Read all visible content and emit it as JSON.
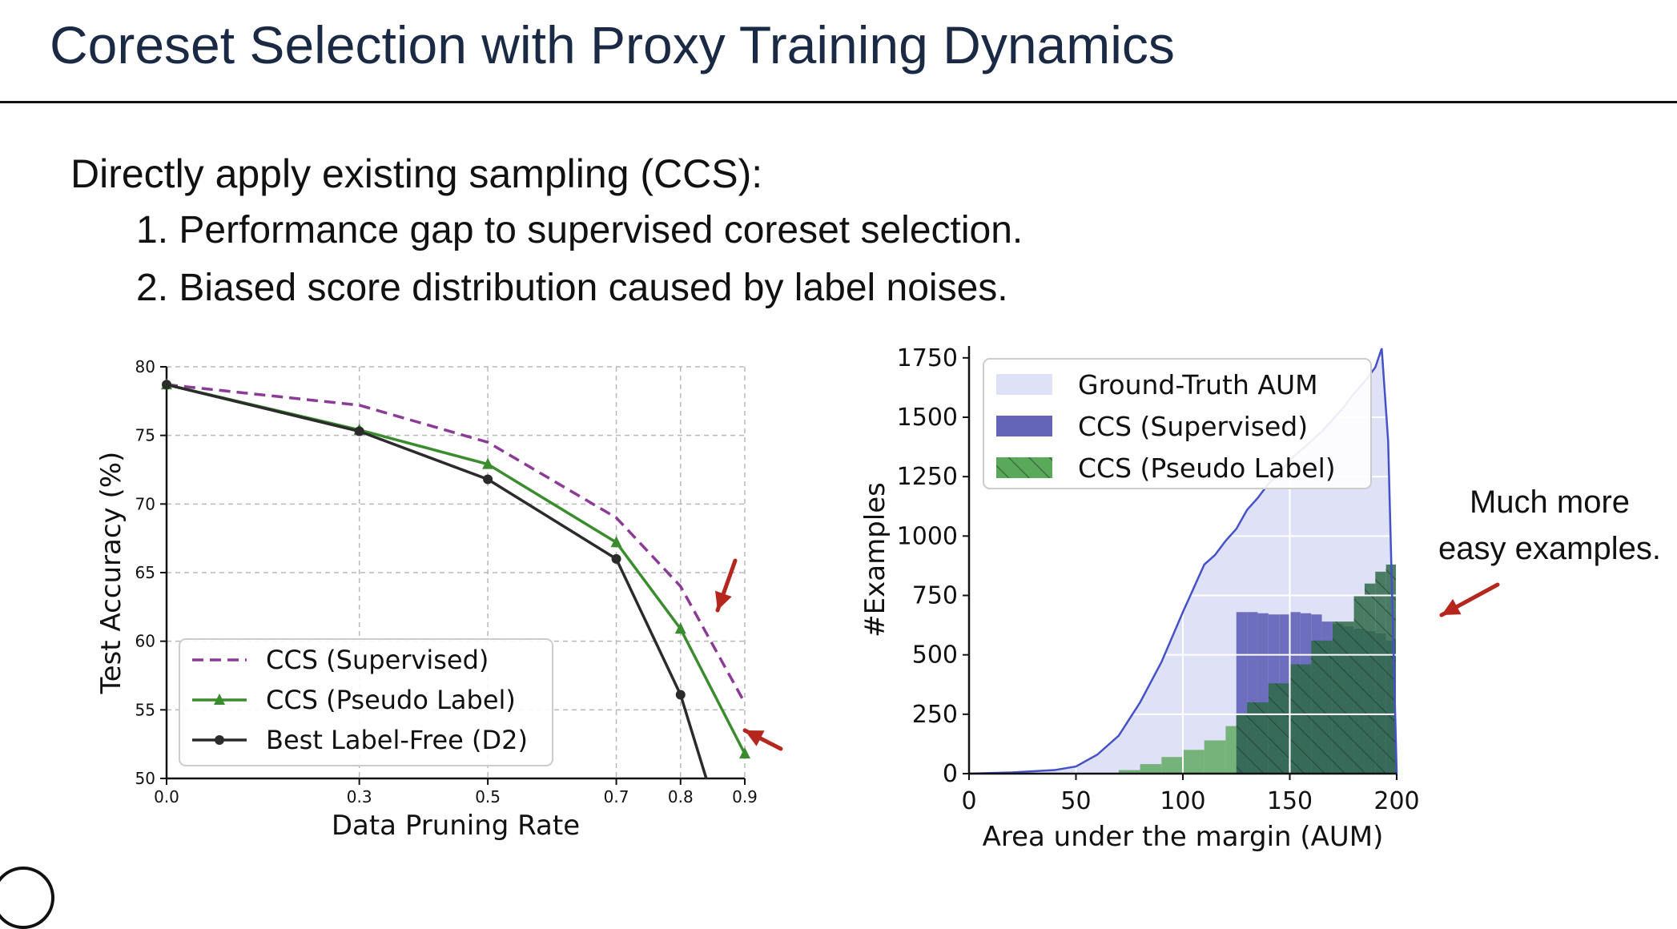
{
  "slide": {
    "title": "Coreset Selection with Proxy Training Dynamics",
    "heading": "Directly apply existing sampling (CCS):",
    "items": [
      "1. Performance gap to supervised coreset selection.",
      "2. Biased score distribution caused by label noises."
    ],
    "note_lines": [
      "Much more",
      "easy examples."
    ]
  },
  "colors": {
    "supervised_line": "#8b3a96",
    "pseudo_line": "#3a8c2e",
    "d2_line": "#2b2b2b",
    "gt_fill": "#dfe1f7",
    "gt_line": "#4451c8",
    "supervised_bar": "#6464b8",
    "pseudo_bar": "#5aa85a",
    "overlap_bar": "#2f6a48",
    "arrow": "#b5261e"
  },
  "chart_data": [
    {
      "type": "line",
      "title": "",
      "xlabel": "Data Pruning Rate",
      "ylabel": "Test Accuracy (%)",
      "xlim": [
        0.0,
        0.9
      ],
      "ylim": [
        50,
        80
      ],
      "x_ticks": [
        "0.0",
        "0.3",
        "0.5",
        "0.7",
        "0.8",
        "0.9"
      ],
      "y_ticks": [
        "50",
        "55",
        "60",
        "65",
        "70",
        "75",
        "80"
      ],
      "grid": true,
      "legend_position": "lower-left",
      "series": [
        {
          "name": "CCS (Supervised)",
          "style": "dashed",
          "marker": "none",
          "x": [
            0.0,
            0.3,
            0.5,
            0.7,
            0.8,
            0.9
          ],
          "y": [
            78.7,
            77.2,
            74.5,
            69.0,
            64.0,
            55.5
          ]
        },
        {
          "name": "CCS (Pseudo Label)",
          "style": "solid",
          "marker": "triangle",
          "x": [
            0.0,
            0.3,
            0.5,
            0.7,
            0.8,
            0.9
          ],
          "y": [
            78.7,
            75.4,
            72.9,
            67.2,
            60.9,
            51.8
          ]
        },
        {
          "name": "Best Label-Free (D2)",
          "style": "solid",
          "marker": "circle",
          "x": [
            0.0,
            0.3,
            0.5,
            0.7,
            0.8,
            0.84
          ],
          "y": [
            78.7,
            75.3,
            71.8,
            66.0,
            56.1,
            50.0
          ]
        }
      ]
    },
    {
      "type": "area",
      "title": "",
      "xlabel": "Area under the margin (AUM)",
      "ylabel": "#Examples",
      "xlim": [
        0,
        200
      ],
      "ylim": [
        0,
        1800
      ],
      "x_ticks": [
        "0",
        "50",
        "100",
        "150",
        "200"
      ],
      "y_ticks": [
        "0",
        "250",
        "500",
        "750",
        "1000",
        "1250",
        "1500",
        "1750"
      ],
      "grid": true,
      "legend_position": "top-left",
      "series": [
        {
          "name": "Ground-Truth AUM",
          "kind": "filled-line",
          "x": [
            0,
            20,
            40,
            50,
            60,
            70,
            80,
            90,
            100,
            110,
            115,
            120,
            125,
            130,
            135,
            140,
            145,
            150,
            155,
            160,
            165,
            170,
            175,
            180,
            185,
            190,
            193,
            196,
            198,
            200
          ],
          "y": [
            0,
            5,
            15,
            30,
            80,
            160,
            300,
            470,
            680,
            880,
            920,
            980,
            1030,
            1110,
            1160,
            1220,
            1260,
            1320,
            1360,
            1400,
            1440,
            1490,
            1540,
            1600,
            1650,
            1710,
            1790,
            1400,
            700,
            0
          ]
        },
        {
          "name": "CCS (Supervised)",
          "kind": "histogram",
          "x": [
            125,
            130,
            135,
            140,
            145,
            150,
            155,
            160,
            165,
            170,
            175,
            180,
            185,
            190,
            195,
            200
          ],
          "y": [
            680,
            680,
            675,
            670,
            670,
            680,
            675,
            670,
            640,
            630,
            620,
            610,
            600,
            590,
            560,
            500
          ]
        },
        {
          "name": "CCS (Pseudo Label)",
          "kind": "histogram",
          "x": [
            70,
            80,
            90,
            100,
            110,
            120,
            125,
            130,
            140,
            150,
            160,
            170,
            180,
            185,
            190,
            195,
            200
          ],
          "y": [
            15,
            40,
            70,
            100,
            140,
            200,
            250,
            300,
            380,
            460,
            560,
            640,
            750,
            800,
            850,
            880,
            0
          ]
        }
      ]
    }
  ]
}
